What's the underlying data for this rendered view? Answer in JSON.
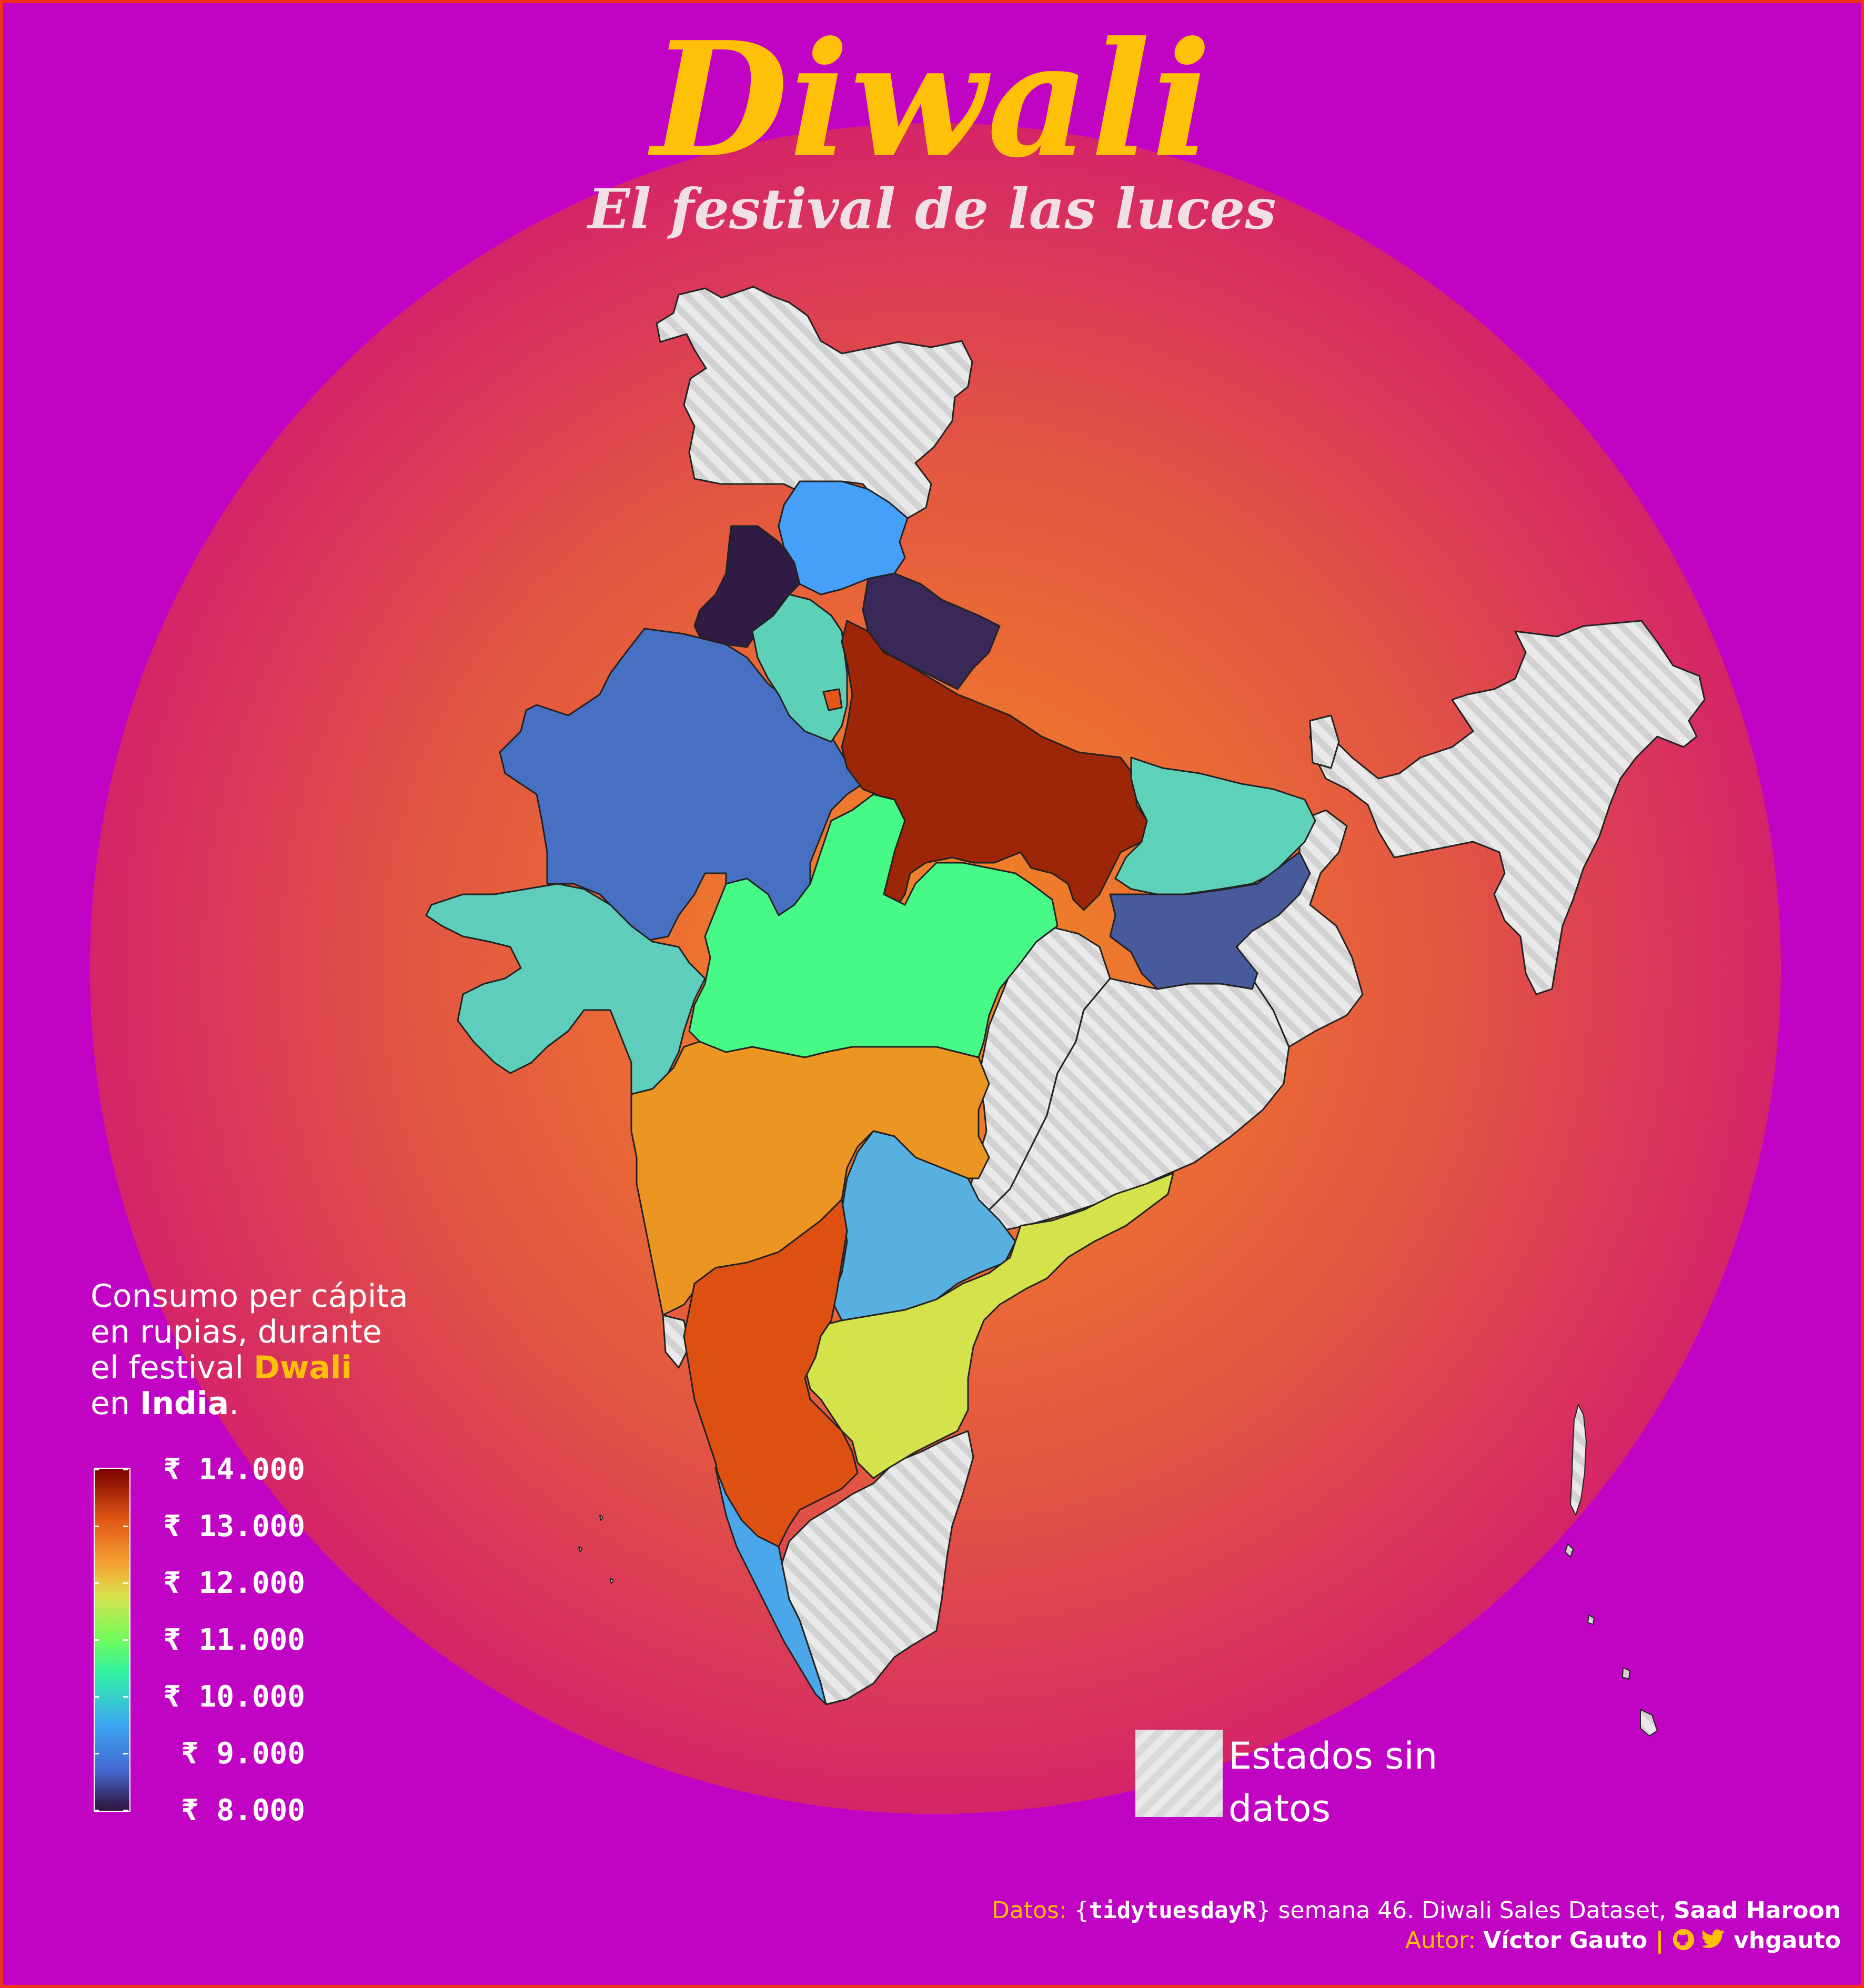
{
  "title": "Diwali",
  "subtitle": "El festival de las luces",
  "legend": {
    "title_line1": "Consumo per cápita",
    "title_line2": "en rupias, durante",
    "title_line3_prefix": "el festival ",
    "title_line3_highlight": "Dwali",
    "title_line4_prefix": "en ",
    "title_line4_bold": "India",
    "title_line4_suffix": ".",
    "ticks": [
      "₹ 14.000",
      "₹ 13.000",
      "₹ 12.000",
      "₹ 11.000",
      "₹ 10.000",
      "₹ 9.000",
      "₹ 8.000"
    ],
    "no_data_label": "Estados sin datos"
  },
  "map_data": {
    "type": "choropleth",
    "region": "India",
    "value_unit": "₹",
    "scale": {
      "min": 8000,
      "max": 14000,
      "palette": "turbo"
    },
    "states": [
      {
        "id": "punjab",
        "value": 8100,
        "color": "#2f1b44"
      },
      {
        "id": "himachal",
        "value": 9100,
        "color": "#46a0fa"
      },
      {
        "id": "uttarakhand",
        "value": 8300,
        "color": "#3a2858"
      },
      {
        "id": "haryana",
        "value": 9800,
        "color": "#5cd1b8"
      },
      {
        "id": "delhi",
        "value": 13000,
        "color": "#e4561a"
      },
      {
        "id": "rajasthan",
        "value": 8900,
        "color": "#4770c2"
      },
      {
        "id": "uttar-pradesh",
        "value": 13800,
        "color": "#9d2608"
      },
      {
        "id": "bihar",
        "value": 9800,
        "color": "#5ed1b9"
      },
      {
        "id": "jharkhand",
        "value": 8800,
        "color": "#465a9c"
      },
      {
        "id": "gujarat",
        "value": 9800,
        "color": "#5ecdbb"
      },
      {
        "id": "madhya-pradesh",
        "value": 10300,
        "color": "#47fa87"
      },
      {
        "id": "maharashtra",
        "value": 12100,
        "color": "#eb9622"
      },
      {
        "id": "telangana",
        "value": 9400,
        "color": "#58b0e1"
      },
      {
        "id": "andhra-pradesh",
        "value": 11300,
        "color": "#d4e24b"
      },
      {
        "id": "karnataka",
        "value": 13000,
        "color": "#de4f12"
      },
      {
        "id": "kerala",
        "value": 9300,
        "color": "#4ca6ea"
      }
    ],
    "no_data_states": [
      "jammu-kashmir-ladakh",
      "chhattisgarh",
      "odisha",
      "west-bengal",
      "tamil-nadu",
      "goa",
      "northeast"
    ],
    "colors": {
      "no_data_fill": "#dcdcdc",
      "background": "#c103c4",
      "glow_center": "#f08a25",
      "border": "#f0301a"
    }
  },
  "credits": {
    "line1_label": "Datos: ",
    "line1_brace_open": "{",
    "line1_pkg": "tidytuesdayR",
    "line1_brace_close": "}",
    "line1_text": " semana 46. Diwali Sales Dataset, ",
    "line1_author": "Saad Haroon",
    "line2_label": "Autor: ",
    "line2_name": "Víctor Gauto",
    "line2_sep": "  |  ",
    "line2_handle": " vhgauto",
    "icons": [
      "github-icon",
      "twitter-icon"
    ]
  }
}
